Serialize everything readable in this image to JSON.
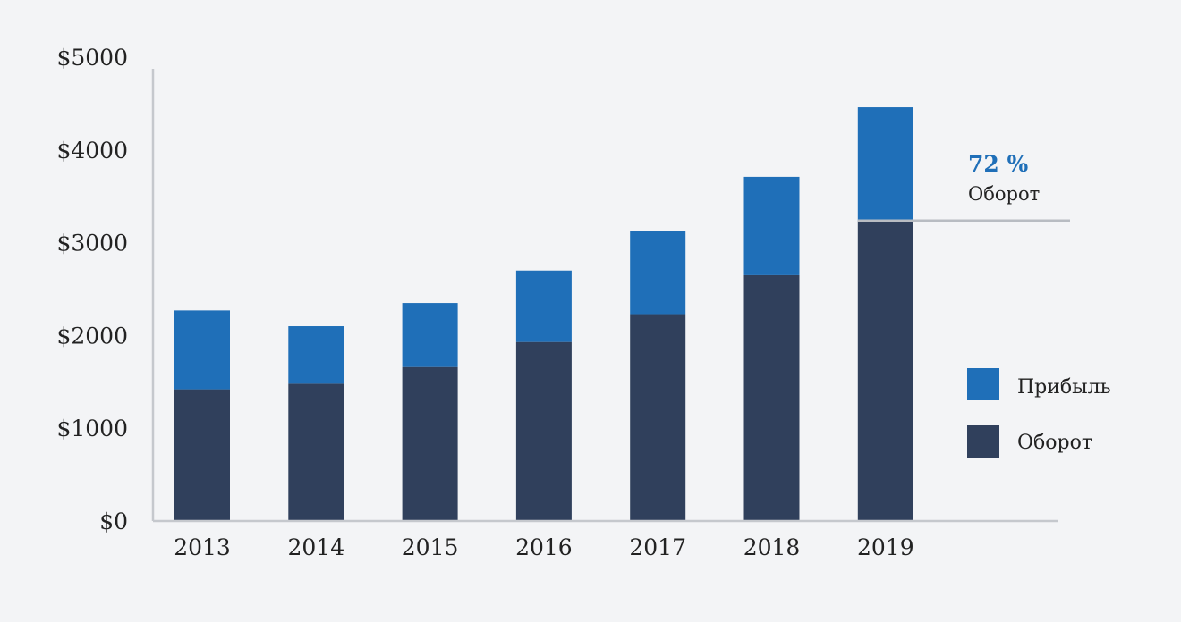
{
  "chart_data": {
    "type": "bar",
    "stacked": true,
    "categories": [
      "2013",
      "2014",
      "2015",
      "2016",
      "2017",
      "2018",
      "2019"
    ],
    "series": [
      {
        "name": "Оборот",
        "color": "#30405c",
        "values": [
          1420,
          1480,
          1660,
          1930,
          2230,
          2650,
          3240
        ]
      },
      {
        "name": "Прибыль",
        "color": "#1f6fb8",
        "values": [
          850,
          620,
          690,
          770,
          900,
          1060,
          1220
        ]
      }
    ],
    "y_ticks": [
      "$0",
      "$1000",
      "$2000",
      "$3000",
      "$4000",
      "$5000"
    ],
    "ylim": [
      0,
      5000
    ],
    "grid": false,
    "legend_position": "right",
    "annotation": {
      "value": "72 %",
      "label": "Оборот",
      "at_y": 3240
    },
    "colors": {
      "axis": "#c5c8cd",
      "callout_line": "#b8bcc2",
      "callout": "#1f6fb8"
    }
  }
}
